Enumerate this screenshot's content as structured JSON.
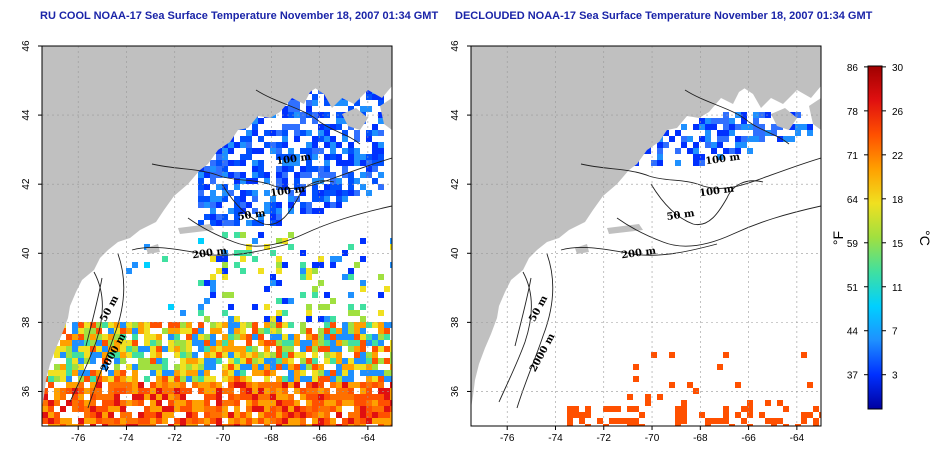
{
  "panels": [
    {
      "title": "RU COOL NOAA-17 Sea Surface Temperature November 18, 2007 01:34 GMT",
      "contour_labels": [
        "100 m",
        "100 m",
        "50 m",
        "200 m",
        "50 m",
        "2000 m"
      ],
      "coverage": "full"
    },
    {
      "title": "DECLOUDED NOAA-17 Sea Surface Temperature November 18, 2007 01:34 GMT",
      "contour_labels": [
        "100 m",
        "100 m",
        "50 m",
        "200 m",
        "50 m",
        "2000 m"
      ],
      "coverage": "declouded"
    }
  ],
  "map": {
    "lon_ticks": [
      "-76",
      "-74",
      "-72",
      "-70",
      "-68",
      "-66",
      "-64"
    ],
    "lat_ticks": [
      "46",
      "44",
      "42",
      "40",
      "38",
      "36"
    ],
    "lon_range": [
      -77.5,
      -63
    ],
    "lat_range": [
      35,
      46
    ],
    "land_color": "#c0c0c0",
    "ocean_color": "#ffffff"
  },
  "colorbar": {
    "fahrenheit_ticks": [
      "86",
      "78",
      "71",
      "64",
      "59",
      "51",
      "44",
      "37"
    ],
    "celsius_ticks": [
      "30",
      "26",
      "22",
      "18",
      "15",
      "11",
      "7",
      "3"
    ],
    "fahrenheit_label": "°F",
    "celsius_label": "°C",
    "colors": [
      "#0000a0",
      "#0030ff",
      "#1e90ff",
      "#00d0ff",
      "#40e0a0",
      "#a0e040",
      "#f0e020",
      "#ffa000",
      "#ff5000",
      "#e01010",
      "#a00000"
    ]
  }
}
